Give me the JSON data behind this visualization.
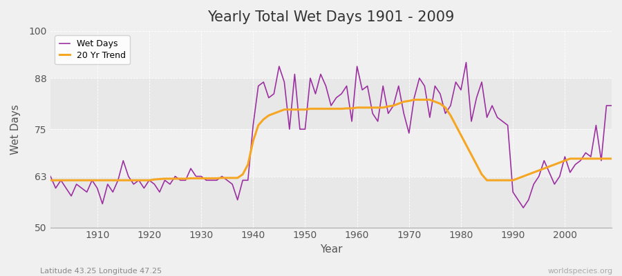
{
  "title": "Yearly Total Wet Days 1901 - 2009",
  "xlabel": "Year",
  "ylabel": "Wet Days",
  "subtitle": "Latitude 43.25 Longitude 47.25",
  "watermark": "worldspecies.org",
  "ylim": [
    50,
    100
  ],
  "xlim": [
    1901,
    2009
  ],
  "yticks": [
    50,
    63,
    75,
    88,
    100
  ],
  "xticks": [
    1910,
    1920,
    1930,
    1940,
    1950,
    1960,
    1970,
    1980,
    1990,
    2000
  ],
  "bg_color": "#f0f0f0",
  "plot_bg_color": "#f0f0f0",
  "band1_color": "#e8e8e8",
  "band2_color": "#f5f5f5",
  "wet_days_color": "#9b30a0",
  "trend_color": "#f5a623",
  "legend_label_wet": "Wet Days",
  "legend_label_trend": "20 Yr Trend",
  "years": [
    1901,
    1902,
    1903,
    1904,
    1905,
    1906,
    1907,
    1908,
    1909,
    1910,
    1911,
    1912,
    1913,
    1914,
    1915,
    1916,
    1917,
    1918,
    1919,
    1920,
    1921,
    1922,
    1923,
    1924,
    1925,
    1926,
    1927,
    1928,
    1929,
    1930,
    1931,
    1932,
    1933,
    1934,
    1935,
    1936,
    1937,
    1938,
    1939,
    1940,
    1941,
    1942,
    1943,
    1944,
    1945,
    1946,
    1947,
    1948,
    1949,
    1950,
    1951,
    1952,
    1953,
    1954,
    1955,
    1956,
    1957,
    1958,
    1959,
    1960,
    1961,
    1962,
    1963,
    1964,
    1965,
    1966,
    1967,
    1968,
    1969,
    1970,
    1971,
    1972,
    1973,
    1974,
    1975,
    1976,
    1977,
    1978,
    1979,
    1980,
    1981,
    1982,
    1983,
    1984,
    1985,
    1986,
    1987,
    1988,
    1989,
    1990,
    1991,
    1992,
    1993,
    1994,
    1995,
    1996,
    1997,
    1998,
    1999,
    2000,
    2001,
    2002,
    2003,
    2004,
    2005,
    2006,
    2007,
    2008,
    2009
  ],
  "wet_days": [
    63,
    60,
    62,
    60,
    58,
    61,
    60,
    59,
    62,
    60,
    56,
    61,
    59,
    62,
    67,
    63,
    61,
    62,
    60,
    62,
    61,
    59,
    62,
    61,
    63,
    62,
    62,
    65,
    63,
    63,
    62,
    62,
    62,
    63,
    62,
    61,
    57,
    62,
    62,
    76,
    86,
    87,
    83,
    84,
    91,
    87,
    75,
    89,
    75,
    75,
    88,
    84,
    89,
    86,
    81,
    83,
    84,
    86,
    77,
    91,
    85,
    86,
    79,
    77,
    86,
    79,
    81,
    86,
    79,
    74,
    83,
    88,
    86,
    78,
    86,
    84,
    79,
    81,
    87,
    85,
    92,
    77,
    83,
    87,
    78,
    81,
    78,
    77,
    76,
    59,
    57,
    55,
    57,
    61,
    63,
    67,
    64,
    61,
    63,
    68,
    64,
    66,
    67,
    69,
    68,
    76,
    67,
    81,
    81
  ],
  "trend": [
    62.0,
    62.0,
    62.0,
    62.0,
    62.0,
    62.0,
    62.0,
    62.0,
    62.0,
    62.0,
    62.0,
    62.0,
    62.0,
    62.0,
    62.0,
    62.0,
    62.0,
    62.0,
    62.0,
    62.0,
    62.2,
    62.3,
    62.4,
    62.4,
    62.4,
    62.4,
    62.4,
    62.5,
    62.5,
    62.5,
    62.5,
    62.5,
    62.5,
    62.6,
    62.6,
    62.6,
    62.6,
    63.5,
    66.0,
    72.0,
    76.0,
    77.5,
    78.5,
    79.0,
    79.5,
    80.0,
    80.0,
    80.0,
    80.0,
    80.0,
    80.2,
    80.2,
    80.2,
    80.2,
    80.2,
    80.2,
    80.2,
    80.3,
    80.3,
    80.5,
    80.5,
    80.5,
    80.5,
    80.5,
    80.5,
    80.8,
    81.0,
    81.5,
    82.0,
    82.2,
    82.5,
    82.5,
    82.5,
    82.5,
    82.0,
    81.5,
    80.5,
    78.5,
    76.0,
    73.5,
    71.0,
    68.5,
    66.0,
    63.5,
    62.0,
    62.0,
    62.0,
    62.0,
    62.0,
    62.0,
    62.5,
    63.0,
    63.5,
    64.0,
    64.5,
    65.0,
    65.5,
    66.0,
    66.5,
    67.0,
    67.5,
    67.5,
    67.5,
    67.5,
    67.5,
    67.5,
    67.5,
    67.5,
    67.5
  ]
}
